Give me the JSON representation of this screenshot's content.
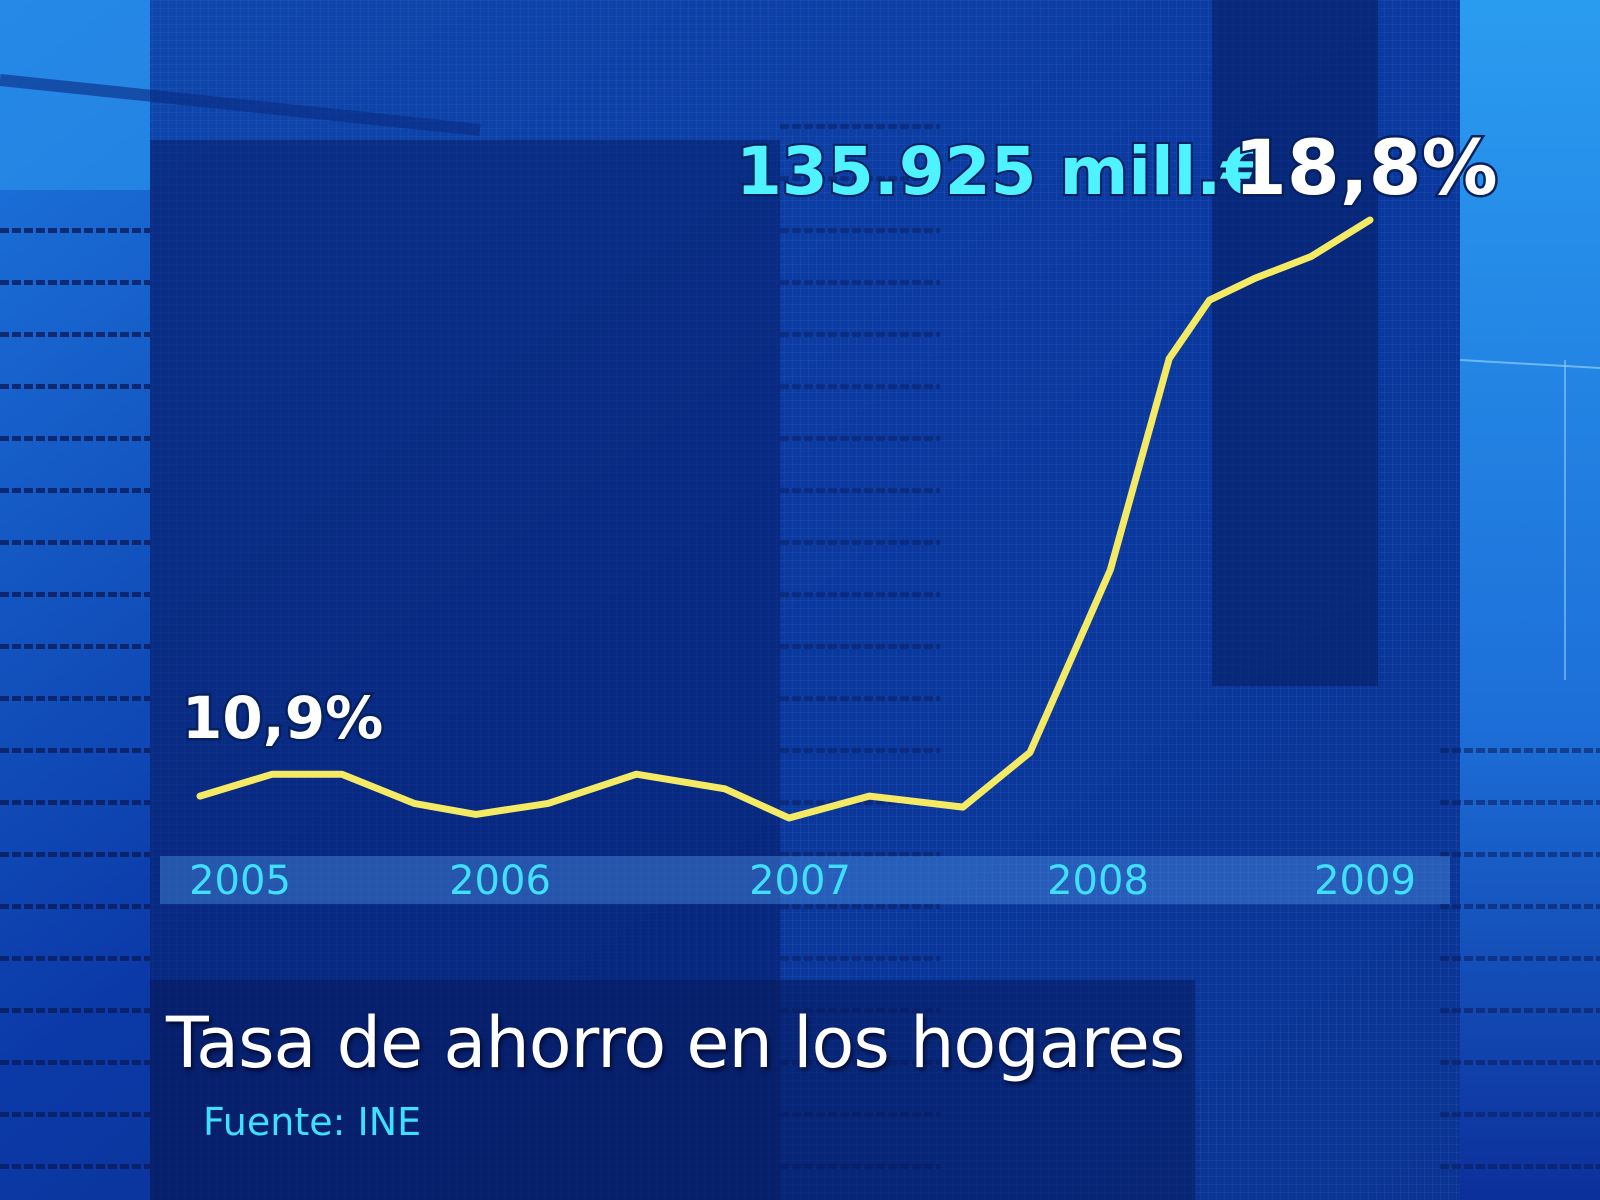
{
  "chart_data": {
    "type": "line",
    "title": "Tasa de ahorro en los hogares",
    "source": "Fuente: INE",
    "x_ticks": [
      "2005",
      "2006",
      "2007",
      "2008",
      "2009"
    ],
    "x": [
      2005.0,
      2005.27,
      2005.53,
      2005.8,
      2006.03,
      2006.3,
      2006.63,
      2006.96,
      2007.2,
      2007.5,
      2007.85,
      2008.1,
      2008.4,
      2008.62,
      2008.77,
      2008.94,
      2009.15,
      2009.37
    ],
    "y": [
      10.9,
      11.2,
      11.2,
      10.8,
      10.65,
      10.8,
      11.2,
      11.0,
      10.6,
      10.9,
      10.75,
      11.5,
      14.0,
      16.9,
      17.7,
      18.0,
      18.3,
      18.8
    ],
    "annotations": {
      "start": "10,9%",
      "end_amount": "135.925 mill.€",
      "end_rate": "18,8%"
    },
    "colors": {
      "line": "#f4ea63",
      "tick": "#3fe0ff",
      "amount": "#4ff2ff"
    },
    "grid": false,
    "legend": "none"
  }
}
